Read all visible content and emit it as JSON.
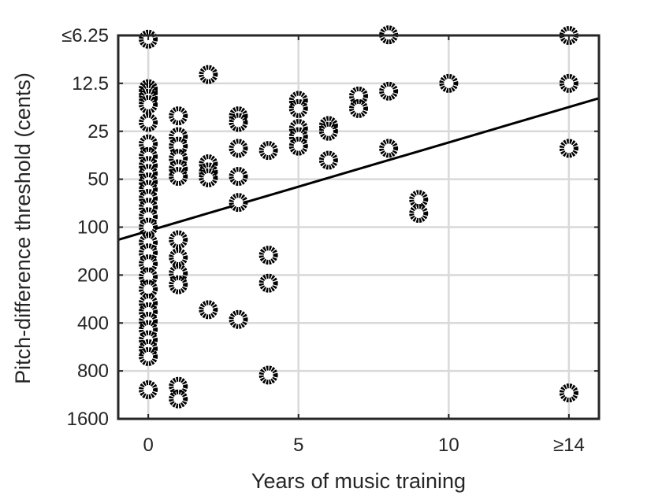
{
  "chart_data": {
    "type": "scatter",
    "title": "",
    "xlabel": "Years of music training",
    "ylabel": "Pitch-difference threshold (cents)",
    "xlim": [
      -1,
      15
    ],
    "ylim_log2": [
      -4,
      4
    ],
    "x_scale": "linear",
    "y_scale": "log2 (reversed)",
    "grid": true,
    "x_ticks": [
      {
        "value": 0,
        "label": "0"
      },
      {
        "value": 5,
        "label": "5"
      },
      {
        "value": 10,
        "label": "10"
      },
      {
        "value": 14,
        "label": "≥14"
      }
    ],
    "y_ticks": [
      {
        "value": 6.25,
        "label": "≤6.25"
      },
      {
        "value": 12.5,
        "label": "12.5"
      },
      {
        "value": 25,
        "label": "25"
      },
      {
        "value": 50,
        "label": "50"
      },
      {
        "value": 100,
        "label": "100"
      },
      {
        "value": 200,
        "label": "200"
      },
      {
        "value": 400,
        "label": "400"
      },
      {
        "value": 800,
        "label": "800"
      },
      {
        "value": 1600,
        "label": "1600"
      }
    ],
    "points": [
      {
        "x": 0,
        "y": 6.6
      },
      {
        "x": 0,
        "y": 13.5
      },
      {
        "x": 0,
        "y": 14.3
      },
      {
        "x": 0,
        "y": 15.5
      },
      {
        "x": 0,
        "y": 17
      },
      {
        "x": 0,
        "y": 22
      },
      {
        "x": 0,
        "y": 30
      },
      {
        "x": 0,
        "y": 36
      },
      {
        "x": 0,
        "y": 41
      },
      {
        "x": 0,
        "y": 46
      },
      {
        "x": 0,
        "y": 52
      },
      {
        "x": 0,
        "y": 58
      },
      {
        "x": 0,
        "y": 66
      },
      {
        "x": 0,
        "y": 75
      },
      {
        "x": 0,
        "y": 86
      },
      {
        "x": 0,
        "y": 100
      },
      {
        "x": 0,
        "y": 125
      },
      {
        "x": 0,
        "y": 145
      },
      {
        "x": 0,
        "y": 170
      },
      {
        "x": 0,
        "y": 205
      },
      {
        "x": 0,
        "y": 245
      },
      {
        "x": 0,
        "y": 300
      },
      {
        "x": 0,
        "y": 340
      },
      {
        "x": 0,
        "y": 390
      },
      {
        "x": 0,
        "y": 440
      },
      {
        "x": 0,
        "y": 510
      },
      {
        "x": 0,
        "y": 580
      },
      {
        "x": 0,
        "y": 650
      },
      {
        "x": 0,
        "y": 1050
      },
      {
        "x": 1,
        "y": 20
      },
      {
        "x": 1,
        "y": 27
      },
      {
        "x": 1,
        "y": 31
      },
      {
        "x": 1,
        "y": 37
      },
      {
        "x": 1,
        "y": 43
      },
      {
        "x": 1,
        "y": 48
      },
      {
        "x": 1,
        "y": 120
      },
      {
        "x": 1,
        "y": 155
      },
      {
        "x": 1,
        "y": 195
      },
      {
        "x": 1,
        "y": 230
      },
      {
        "x": 1,
        "y": 1000
      },
      {
        "x": 1,
        "y": 1200
      },
      {
        "x": 2,
        "y": 11
      },
      {
        "x": 2,
        "y": 40
      },
      {
        "x": 2,
        "y": 45
      },
      {
        "x": 2,
        "y": 49
      },
      {
        "x": 2,
        "y": 330
      },
      {
        "x": 3,
        "y": 20
      },
      {
        "x": 3,
        "y": 22
      },
      {
        "x": 3,
        "y": 32
      },
      {
        "x": 3,
        "y": 48
      },
      {
        "x": 3,
        "y": 70
      },
      {
        "x": 3,
        "y": 380
      },
      {
        "x": 4,
        "y": 33
      },
      {
        "x": 4,
        "y": 150
      },
      {
        "x": 4,
        "y": 225
      },
      {
        "x": 4,
        "y": 850
      },
      {
        "x": 5,
        "y": 16
      },
      {
        "x": 5,
        "y": 18
      },
      {
        "x": 5,
        "y": 24
      },
      {
        "x": 5,
        "y": 27
      },
      {
        "x": 5,
        "y": 31
      },
      {
        "x": 6,
        "y": 23
      },
      {
        "x": 6,
        "y": 25
      },
      {
        "x": 6,
        "y": 38
      },
      {
        "x": 7,
        "y": 15
      },
      {
        "x": 7,
        "y": 18
      },
      {
        "x": 8,
        "y": 6.2
      },
      {
        "x": 8,
        "y": 14
      },
      {
        "x": 8,
        "y": 32
      },
      {
        "x": 9,
        "y": 67
      },
      {
        "x": 9,
        "y": 82
      },
      {
        "x": 10,
        "y": 12.5
      },
      {
        "x": 14,
        "y": 6.25
      },
      {
        "x": 14,
        "y": 12.5
      },
      {
        "x": 14,
        "y": 32
      },
      {
        "x": 14,
        "y": 1100
      }
    ],
    "fit_line": {
      "x": [
        -1,
        15
      ],
      "y": [
        120,
        15.5
      ]
    }
  }
}
